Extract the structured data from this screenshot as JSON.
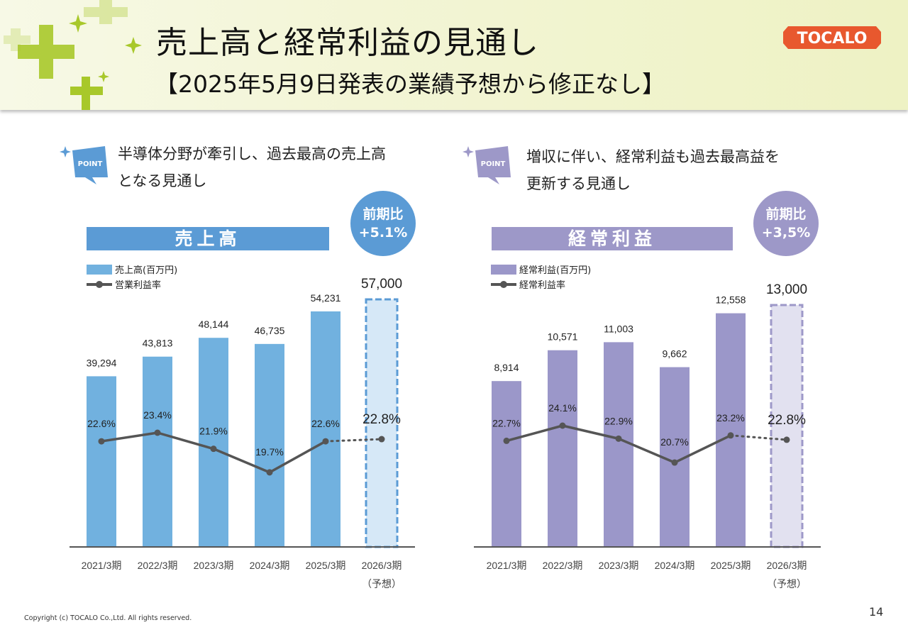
{
  "header": {
    "title": "売上高と経常利益の見通し",
    "subtitle": "【2025年5月9日発表の業績予想から修正なし】",
    "logo_text": "TOCALO",
    "logo_color": "#e8582e"
  },
  "left_panel": {
    "point_label": "POINT",
    "point_lines": [
      "半導体分野が牽引し、過去最高の売上高",
      "となる見通し"
    ],
    "banner": "売上高",
    "yoy_label": "前期比",
    "yoy_value": "+5.1%",
    "accent_color": "#5b9bd5",
    "bar_color": "#71b1df",
    "forecast_fill": "#d6e8f7",
    "legend": [
      "売上高(百万円)",
      "営業利益率"
    ]
  },
  "right_panel": {
    "point_label": "POINT",
    "point_lines": [
      "増収に伴い、経常利益も過去最高益を",
      "更新する見通し"
    ],
    "banner": "経常利益",
    "yoy_label": "前期比",
    "yoy_value": "+3,5%",
    "accent_color": "#9d98c8",
    "bar_color": "#9b97c9",
    "forecast_fill": "#e2e1f0",
    "legend": [
      "経常利益(百万円)",
      "経常利益率"
    ]
  },
  "chart_data": [
    {
      "type": "bar",
      "title": "売上高",
      "categories": [
        "2021/3期",
        "2022/3期",
        "2023/3期",
        "2024/3期",
        "2025/3期",
        "2026/3期"
      ],
      "category_sublabels": [
        "",
        "",
        "",
        "",
        "",
        "（予想）"
      ],
      "series": [
        {
          "name": "売上高(百万円)",
          "type": "bar",
          "values": [
            39294,
            43813,
            48144,
            46735,
            54231,
            57000
          ],
          "labels": [
            "39,294",
            "43,813",
            "48,144",
            "46,735",
            "54,231",
            "57,000"
          ],
          "forecast_index": 5
        },
        {
          "name": "営業利益率",
          "type": "line",
          "values": [
            22.6,
            23.4,
            21.9,
            19.7,
            22.6,
            22.8
          ],
          "labels": [
            "22.6%",
            "23.4%",
            "21.9%",
            "19.7%",
            "22.6%",
            "22.8%"
          ],
          "forecast_index": 5
        }
      ],
      "xlabel": "",
      "ylabel": "",
      "ylim": [
        0,
        57000
      ],
      "grid": false,
      "legend": "top-left"
    },
    {
      "type": "bar",
      "title": "経常利益",
      "categories": [
        "2021/3期",
        "2022/3期",
        "2023/3期",
        "2024/3期",
        "2025/3期",
        "2026/3期"
      ],
      "category_sublabels": [
        "",
        "",
        "",
        "",
        "",
        "（予想）"
      ],
      "series": [
        {
          "name": "経常利益(百万円)",
          "type": "bar",
          "values": [
            8914,
            10571,
            11003,
            9662,
            12558,
            13000
          ],
          "labels": [
            "8,914",
            "10,571",
            "11,003",
            "9,662",
            "12,558",
            "13,000"
          ],
          "forecast_index": 5
        },
        {
          "name": "経常利益率",
          "type": "line",
          "values": [
            22.7,
            24.1,
            22.9,
            20.7,
            23.2,
            22.8
          ],
          "labels": [
            "22.7%",
            "24.1%",
            "22.9%",
            "20.7%",
            "23.2%",
            "22.8%"
          ],
          "forecast_index": 5
        }
      ],
      "xlabel": "",
      "ylabel": "",
      "ylim": [
        0,
        13000
      ],
      "grid": false,
      "legend": "top-left"
    }
  ],
  "footer": {
    "copyright": "Copyright (c) TOCALO Co.,Ltd. All rights reserved.",
    "page_number": "14"
  }
}
